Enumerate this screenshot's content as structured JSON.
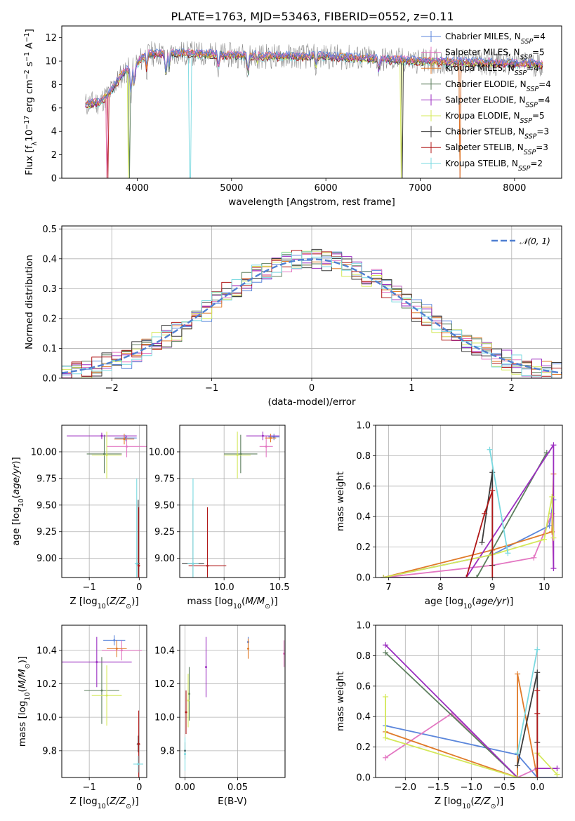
{
  "title": "PLATE=1763, MJD=53463, FIBERID=0552, z=0.11",
  "colors": {
    "Chabrier MILES": "#5b86db",
    "Salpeter MILES": "#e377c2",
    "Kroupa MILES": "#e07b2a",
    "Chabrier ELODIE": "#5d7f5e",
    "Salpeter ELODIE": "#9b2ec0",
    "Kroupa ELODIE": "#d4e85a",
    "Chabrier STELIB": "#3c3c3c",
    "Salpeter STELIB": "#b01818",
    "Kroupa STELIB": "#79d9e0"
  },
  "legend_spectrum": [
    "Chabrier MILES, N_SSP=4",
    "Salpeter MILES, N_SSP=5",
    "Kroupa MILES, N_SSP=4",
    "Chabrier ELODIE, N_SSP=4",
    "Salpeter ELODIE, N_SSP=4",
    "Kroupa ELODIE, N_SSP=5",
    "Chabrier STELIB, N_SSP=3",
    "Salpeter STELIB, N_SSP=3",
    "Kroupa STELIB, N_SSP=2"
  ],
  "legend_hist": "𝒩(0, 1)",
  "chart_data": [
    {
      "type": "line",
      "panel": "spectrum",
      "xlabel": "wavelength [Angstrom, rest frame]",
      "ylabel": "Flux [fλ 10^-17 erg cm^-2 s^-1 A^-1]",
      "xlim": [
        3200,
        8500
      ],
      "ylim": [
        0,
        13
      ],
      "xticks": [
        4000,
        5000,
        6000,
        7000,
        8000
      ],
      "yticks": [
        0,
        2,
        4,
        6,
        8,
        10,
        12
      ],
      "continuum": {
        "x": [
          3450,
          3600,
          3700,
          3850,
          3950,
          4100,
          4400,
          5000,
          5500,
          6000,
          6500,
          7000,
          7500,
          8000,
          8300
        ],
        "y": [
          6.3,
          6.5,
          7.2,
          9.0,
          9.5,
          10.6,
          10.7,
          10.5,
          10.4,
          10.4,
          10.2,
          10.0,
          9.9,
          9.8,
          9.7
        ]
      },
      "grid": false
    },
    {
      "type": "line",
      "panel": "residual histogram",
      "xlabel": "(data-model)/error",
      "ylabel": "Normed distribution",
      "xlim": [
        -2.5,
        2.5
      ],
      "ylim": [
        0,
        0.51
      ],
      "xticks": [
        -2,
        -1,
        0,
        1,
        2
      ],
      "yticks": [
        0.0,
        0.1,
        0.2,
        0.3,
        0.4,
        0.5
      ],
      "reference": "N(0,1)",
      "grid": true,
      "legend": "top-right"
    },
    {
      "type": "scatter",
      "panel": "age vs Z",
      "xlabel": "Z [log10(Z/Z⊙)]",
      "ylabel": "age  [log10(age/yr)]",
      "xlim": [
        -1.55,
        0.15
      ],
      "ylim": [
        8.82,
        10.25
      ],
      "xticks": [
        -1,
        0
      ],
      "yticks": [
        9.0,
        9.25,
        9.5,
        9.75,
        10.0
      ],
      "points": [
        {
          "model": "Chabrier MILES",
          "x": -0.27,
          "y": 10.13,
          "xerr": 0.22,
          "yerr": 0.03
        },
        {
          "model": "Salpeter MILES",
          "x": -0.25,
          "y": 10.05,
          "xerr": 0.4,
          "yerr": 0.1
        },
        {
          "model": "Kroupa MILES",
          "x": -0.3,
          "y": 10.12,
          "xerr": 0.2,
          "yerr": 0.05
        },
        {
          "model": "Chabrier ELODIE",
          "x": -0.7,
          "y": 9.98,
          "xerr": 0.35,
          "yerr": 0.18
        },
        {
          "model": "Salpeter ELODIE",
          "x": -0.75,
          "y": 10.15,
          "xerr": 0.7,
          "yerr": 0.03
        },
        {
          "model": "Kroupa ELODIE",
          "x": -0.65,
          "y": 9.97,
          "xerr": 0.3,
          "yerr": 0.22
        },
        {
          "model": "Chabrier STELIB",
          "x": -0.02,
          "y": 8.95,
          "xerr": 0.03,
          "yerr": 0.6
        },
        {
          "model": "Salpeter STELIB",
          "x": -0.01,
          "y": 8.93,
          "xerr": 0.03,
          "yerr": 0.55
        },
        {
          "model": "Kroupa STELIB",
          "x": -0.05,
          "y": 8.95,
          "xerr": 0.04,
          "yerr": 0.8
        }
      ]
    },
    {
      "type": "scatter",
      "panel": "age vs mass",
      "xlabel": "mass [log10(M/M⊙)]",
      "xlim": [
        9.6,
        10.55
      ],
      "ylim": [
        8.82,
        10.25
      ],
      "xticks": [
        10.0,
        10.5
      ],
      "yticks": [
        9.0,
        9.25,
        9.5,
        9.75,
        10.0
      ],
      "points": [
        {
          "model": "Chabrier MILES",
          "x": 10.45,
          "y": 10.14,
          "xerr": 0.05,
          "yerr": 0.03
        },
        {
          "model": "Salpeter MILES",
          "x": 10.38,
          "y": 10.05,
          "xerr": 0.06,
          "yerr": 0.1
        },
        {
          "model": "Kroupa MILES",
          "x": 10.42,
          "y": 10.13,
          "xerr": 0.05,
          "yerr": 0.04
        },
        {
          "model": "Chabrier ELODIE",
          "x": 10.15,
          "y": 9.98,
          "xerr": 0.15,
          "yerr": 0.18
        },
        {
          "model": "Salpeter ELODIE",
          "x": 10.35,
          "y": 10.15,
          "xerr": 0.15,
          "yerr": 0.04
        },
        {
          "model": "Kroupa ELODIE",
          "x": 10.12,
          "y": 9.97,
          "xerr": 0.12,
          "yerr": 0.22
        },
        {
          "model": "Chabrier STELIB",
          "x": 9.72,
          "y": 8.95,
          "xerr": 0.1,
          "yerr": 0.6
        },
        {
          "model": "Salpeter STELIB",
          "x": 9.85,
          "y": 8.93,
          "xerr": 0.17,
          "yerr": 0.55
        },
        {
          "model": "Kroupa STELIB",
          "x": 9.72,
          "y": 8.95,
          "xerr": 0.05,
          "yerr": 0.8
        }
      ]
    },
    {
      "type": "line",
      "panel": "mass weight vs age",
      "xlabel": "age  [log10(age/yr)]",
      "ylabel": "mass weight",
      "xlim": [
        6.75,
        10.35
      ],
      "ylim": [
        0,
        1
      ],
      "xticks": [
        7,
        8,
        9,
        10
      ],
      "yticks": [
        0.0,
        0.2,
        0.4,
        0.6,
        0.8,
        1.0
      ],
      "series": [
        {
          "model": "Chabrier MILES",
          "x": [
            6.9,
            9.0,
            10.1,
            10.18
          ],
          "y": [
            0.0,
            0.15,
            0.34,
            0.51
          ]
        },
        {
          "model": "Salpeter MILES",
          "x": [
            6.9,
            9.0,
            9.8,
            10.15,
            10.18
          ],
          "y": [
            0.0,
            0.08,
            0.13,
            0.42,
            0.06
          ]
        },
        {
          "model": "Kroupa MILES",
          "x": [
            6.9,
            9.0,
            10.15,
            10.18
          ],
          "y": [
            0.0,
            0.18,
            0.3,
            0.68
          ]
        },
        {
          "model": "Chabrier ELODIE",
          "x": [
            6.9,
            8.7,
            10.05
          ],
          "y": [
            0.0,
            0.0,
            0.82
          ]
        },
        {
          "model": "Salpeter ELODIE",
          "x": [
            6.9,
            8.5,
            10.18,
            10.18
          ],
          "y": [
            0.0,
            0.0,
            0.87,
            0.06
          ]
        },
        {
          "model": "Kroupa ELODIE",
          "x": [
            6.9,
            9.0,
            10.0,
            10.15,
            10.18
          ],
          "y": [
            0.0,
            0.15,
            0.25,
            0.53,
            0.26
          ]
        },
        {
          "model": "Chabrier STELIB",
          "x": [
            8.8,
            9.0,
            9.0
          ],
          "y": [
            0.23,
            0.69,
            0.08
          ]
        },
        {
          "model": "Salpeter STELIB",
          "x": [
            8.5,
            8.85,
            9.0,
            9.0
          ],
          "y": [
            0.0,
            0.42,
            0.57,
            0.0
          ]
        },
        {
          "model": "Kroupa STELIB",
          "x": [
            8.95,
            9.3
          ],
          "y": [
            0.84,
            0.16
          ]
        }
      ]
    },
    {
      "type": "scatter",
      "panel": "mass vs Z",
      "xlabel": "Z [log10(Z/Z⊙)]",
      "ylabel": "mass [log10(M/M⊙)]",
      "xlim": [
        -1.55,
        0.15
      ],
      "ylim": [
        9.64,
        10.55
      ],
      "xticks": [
        -1,
        0
      ],
      "yticks": [
        9.8,
        10.0,
        10.2,
        10.4
      ],
      "points": [
        {
          "model": "Chabrier MILES",
          "x": -0.5,
          "y": 10.46,
          "xerr": 0.22,
          "yerr": 0.03
        },
        {
          "model": "Salpeter MILES",
          "x": -0.35,
          "y": 10.4,
          "xerr": 0.4,
          "yerr": 0.06
        },
        {
          "model": "Kroupa MILES",
          "x": -0.45,
          "y": 10.41,
          "xerr": 0.2,
          "yerr": 0.05
        },
        {
          "model": "Chabrier ELODIE",
          "x": -0.75,
          "y": 10.16,
          "xerr": 0.35,
          "yerr": 0.2
        },
        {
          "model": "Salpeter ELODIE",
          "x": -0.85,
          "y": 10.33,
          "xerr": 0.7,
          "yerr": 0.15
        },
        {
          "model": "Kroupa ELODIE",
          "x": -0.65,
          "y": 10.13,
          "xerr": 0.3,
          "yerr": 0.18
        },
        {
          "model": "Chabrier STELIB",
          "x": -0.02,
          "y": 9.84,
          "xerr": 0.03,
          "yerr": 0.05
        },
        {
          "model": "Salpeter STELIB",
          "x": -0.01,
          "y": 9.84,
          "xerr": 0.03,
          "yerr": 0.2
        },
        {
          "model": "Kroupa STELIB",
          "x": -0.02,
          "y": 9.72,
          "xerr": 0.1,
          "yerr": 0.05
        }
      ]
    },
    {
      "type": "scatter",
      "panel": "mass vs E(B-V)",
      "xlabel": "E(B-V)",
      "xlim": [
        -0.005,
        0.095
      ],
      "ylim": [
        9.64,
        10.55
      ],
      "xticks": [
        0.0,
        0.05
      ],
      "yticks": [
        9.8,
        10.0,
        10.2,
        10.4
      ],
      "points": [
        {
          "model": "Chabrier MILES",
          "x": 0.06,
          "y": 10.45,
          "yerr": 0.03
        },
        {
          "model": "Salpeter MILES",
          "x": 0.094,
          "y": 10.38,
          "yerr": 0.08
        },
        {
          "model": "Kroupa MILES",
          "x": 0.06,
          "y": 10.41,
          "yerr": 0.06
        },
        {
          "model": "Chabrier ELODIE",
          "x": 0.004,
          "y": 10.14,
          "yerr": 0.16
        },
        {
          "model": "Salpeter ELODIE",
          "x": 0.02,
          "y": 10.3,
          "yerr": 0.18
        },
        {
          "model": "Kroupa ELODIE",
          "x": 0.003,
          "y": 10.1,
          "yerr": 0.16
        },
        {
          "model": "Chabrier STELIB",
          "x": 0.0,
          "y": 9.8,
          "yerr": 0.05
        },
        {
          "model": "Salpeter STELIB",
          "x": 0.001,
          "y": 10.03,
          "yerr": 0.13
        },
        {
          "model": "Kroupa STELIB",
          "x": 0.0,
          "y": 9.78,
          "yerr": 0.1
        }
      ]
    },
    {
      "type": "line",
      "panel": "mass weight vs Z",
      "xlabel": "Z [log10(Z/Z⊙)]",
      "ylabel": "mass weight",
      "xlim": [
        -2.45,
        0.38
      ],
      "ylim": [
        0,
        1
      ],
      "xticks": [
        -2.0,
        -1.5,
        -1.0,
        -0.5,
        0.0
      ],
      "yticks": [
        0.0,
        0.2,
        0.4,
        0.6,
        0.8,
        1.0
      ],
      "series": [
        {
          "model": "Chabrier MILES",
          "x": [
            -2.3,
            -0.3,
            0.0,
            0.3
          ],
          "y": [
            0.34,
            0.15,
            0.0,
            0.0
          ]
        },
        {
          "model": "Salpeter MILES",
          "x": [
            -2.3,
            -1.3,
            -0.3,
            0.0,
            0.3
          ],
          "y": [
            0.13,
            0.42,
            0.0,
            0.06,
            0.06
          ]
        },
        {
          "model": "Kroupa MILES",
          "x": [
            -2.3,
            -0.3,
            -0.3,
            0.0
          ],
          "y": [
            0.3,
            0.0,
            0.68,
            0.0
          ]
        },
        {
          "model": "Chabrier ELODIE",
          "x": [
            -2.3,
            -0.3,
            -0.3
          ],
          "y": [
            0.82,
            0.0,
            0.0
          ]
        },
        {
          "model": "Salpeter ELODIE",
          "x": [
            -2.3,
            -0.3,
            0.0,
            0.0,
            0.3
          ],
          "y": [
            0.87,
            0.0,
            0.0,
            0.06,
            0.06
          ]
        },
        {
          "model": "Kroupa ELODIE",
          "x": [
            -2.3,
            -2.3,
            -0.3,
            0.0,
            0.0,
            0.3
          ],
          "y": [
            0.53,
            0.26,
            0.0,
            0.0,
            0.16,
            0.02
          ]
        },
        {
          "model": "Chabrier STELIB",
          "x": [
            -0.3,
            0.0,
            0.0
          ],
          "y": [
            0.08,
            0.69,
            0.23
          ]
        },
        {
          "model": "Salpeter STELIB",
          "x": [
            0.0,
            0.0,
            0.0
          ],
          "y": [
            0.0,
            0.57,
            0.42
          ]
        },
        {
          "model": "Kroupa STELIB",
          "x": [
            -0.3,
            0.0
          ],
          "y": [
            0.16,
            0.84
          ]
        }
      ]
    }
  ]
}
